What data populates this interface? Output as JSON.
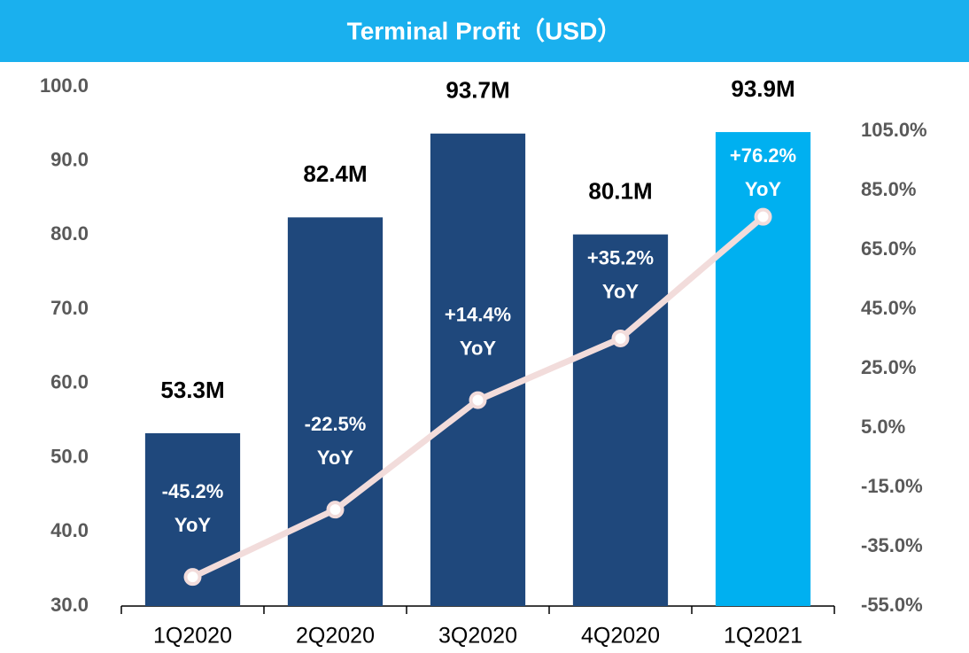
{
  "chart_data": {
    "type": "bar",
    "title": "Terminal Profit（USD）",
    "categories": [
      "1Q2020",
      "2Q2020",
      "3Q2020",
      "4Q2020",
      "1Q2021"
    ],
    "series": [
      {
        "name": "Terminal Profit",
        "type": "bar",
        "colors": [
          "#1f487c",
          "#1f487c",
          "#1f487c",
          "#1f487c",
          "#00b0f0"
        ],
        "values": [
          53.3,
          82.4,
          93.7,
          80.1,
          93.9
        ],
        "value_labels": [
          "53.3M",
          "82.4M",
          "93.7M",
          "80.1M",
          "93.9M"
        ]
      },
      {
        "name": "YoY",
        "type": "line",
        "axis": "y2",
        "color": "#f2dcdb",
        "values": [
          -45.2,
          -22.5,
          14.4,
          35.2,
          76.2
        ],
        "value_labels": [
          "-45.2%",
          "-22.5%",
          "+14.4%",
          "+35.2%",
          "+76.2%"
        ]
      }
    ],
    "ylim": [
      30,
      100
    ],
    "yticks": [
      {
        "value": 30,
        "label": "30.0"
      },
      {
        "value": 40,
        "label": "40.0"
      },
      {
        "value": 50,
        "label": "50.0"
      },
      {
        "value": 60,
        "label": "60.0"
      },
      {
        "value": 70,
        "label": "70.0"
      },
      {
        "value": 80,
        "label": "80.0"
      },
      {
        "value": 90,
        "label": "90.0"
      },
      {
        "value": 100,
        "label": "100.0"
      }
    ],
    "y2lim": [
      -55,
      120
    ],
    "y2ticks": [
      {
        "value": -55,
        "label": "-55.0%"
      },
      {
        "value": -35,
        "label": "-35.0%"
      },
      {
        "value": -15,
        "label": "-15.0%"
      },
      {
        "value": 5,
        "label": "5.0%"
      },
      {
        "value": 25,
        "label": "25.0%"
      },
      {
        "value": 45,
        "label": "45.0%"
      },
      {
        "value": 65,
        "label": "65.0%"
      },
      {
        "value": 85,
        "label": "85.0%"
      },
      {
        "value": 105,
        "label": "105.0%"
      }
    ],
    "grid": false
  }
}
